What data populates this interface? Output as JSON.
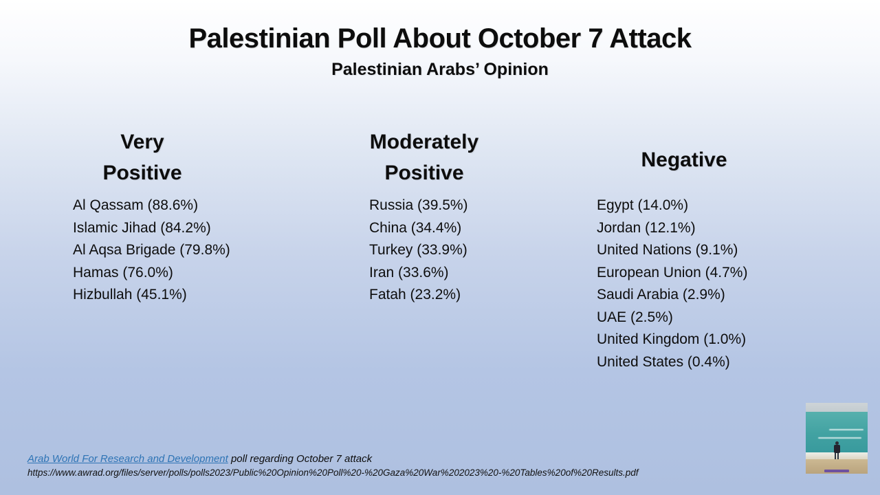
{
  "slide": {
    "title": "Palestinian Poll About October 7 Attack",
    "subtitle": "Palestinian Arabs’ Opinion"
  },
  "columns": [
    {
      "id": "very-positive",
      "header_line1": "Very",
      "header_line2": "Positive",
      "items": [
        {
          "text": "Al Qassam (88.6%)",
          "label": "Al Qassam",
          "percent": 88.6
        },
        {
          "text": "Islamic Jihad (84.2%)",
          "label": "Islamic Jihad",
          "percent": 84.2
        },
        {
          "text": "Al Aqsa Brigade (79.8%)",
          "label": "Al Aqsa Brigade",
          "percent": 79.8
        },
        {
          "text": "Hamas (76.0%)",
          "label": "Hamas",
          "percent": 76.0
        },
        {
          "text": "Hizbullah (45.1%)",
          "label": "Hizbullah",
          "percent": 45.1
        }
      ]
    },
    {
      "id": "moderately-positive",
      "header_line1": "Moderately",
      "header_line2": "Positive",
      "items": [
        {
          "text": "Russia (39.5%)",
          "label": "Russia",
          "percent": 39.5
        },
        {
          "text": "China (34.4%)",
          "label": "China",
          "percent": 34.4
        },
        {
          "text": "Turkey (33.9%)",
          "label": "Turkey",
          "percent": 33.9
        },
        {
          "text": "Iran (33.6%)",
          "label": "Iran",
          "percent": 33.6
        },
        {
          "text": "Fatah (23.2%)",
          "label": "Fatah",
          "percent": 23.2
        }
      ]
    },
    {
      "id": "negative",
      "header_line1": "Negative",
      "items": [
        {
          "text": "Egypt (14.0%)",
          "label": "Egypt",
          "percent": 14.0
        },
        {
          "text": "Jordan (12.1%)",
          "label": "Jordan",
          "percent": 12.1
        },
        {
          "text": "United Nations (9.1%)",
          "label": "United Nations",
          "percent": 9.1
        },
        {
          "text": "European Union (4.7%)",
          "label": "European Union",
          "percent": 4.7
        },
        {
          "text": "Saudi Arabia (2.9%)",
          "label": "Saudi Arabia",
          "percent": 2.9
        },
        {
          "text": "UAE (2.5%)",
          "label": "UAE",
          "percent": 2.5
        },
        {
          "text": "United Kingdom (1.0%)",
          "label": "United Kingdom",
          "percent": 1.0
        },
        {
          "text": "United States (0.4%)",
          "label": "United States",
          "percent": 0.4
        }
      ]
    }
  ],
  "footer": {
    "link_text": "Arab World For Research and Development",
    "line1_rest": " poll regarding October 7 attack",
    "url_line": "https://www.awrad.org/files/server/polls/polls2023/Public%20Opinion%20Poll%20-%20Gaza%20War%202023%20-%20Tables%20of%20Results.pdf"
  },
  "colors": {
    "background_top": "#ffffff",
    "background_bottom": "#aec0e0",
    "link": "#2e74b5",
    "text": "#0d0d0d"
  }
}
